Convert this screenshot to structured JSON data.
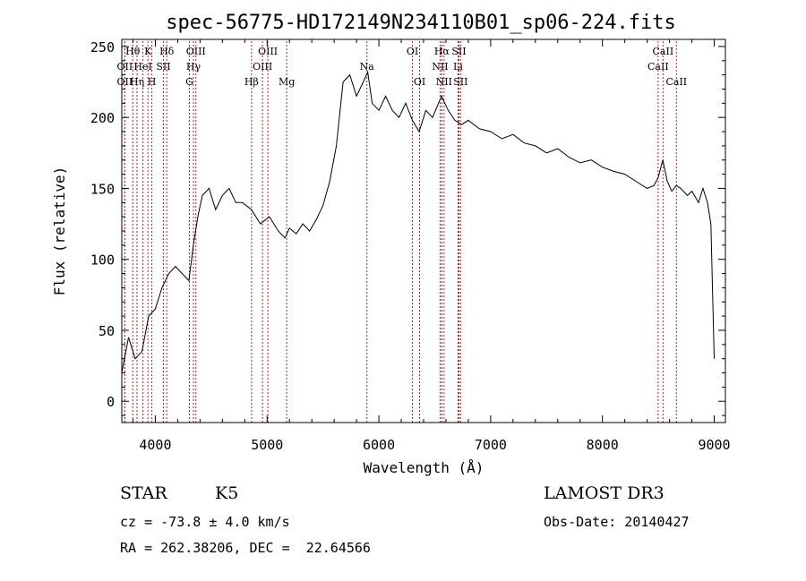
{
  "chart_data": {
    "type": "line",
    "title": "spec-56775-HD172149N234110B01_sp06-224.fits",
    "xlabel": "Wavelength (Å)",
    "ylabel": "Flux (relative)",
    "xlim": [
      3700,
      9100
    ],
    "ylim": [
      -15,
      255
    ],
    "xticks": [
      4000,
      5000,
      6000,
      7000,
      8000,
      9000
    ],
    "yticks": [
      0,
      50,
      100,
      150,
      200,
      250
    ],
    "series": [
      {
        "name": "flux",
        "x": [
          3700,
          3760,
          3820,
          3880,
          3940,
          4000,
          4060,
          4120,
          4180,
          4240,
          4300,
          4340,
          4380,
          4420,
          4480,
          4540,
          4600,
          4660,
          4720,
          4780,
          4860,
          4940,
          5020,
          5100,
          5160,
          5200,
          5260,
          5320,
          5380,
          5440,
          5500,
          5560,
          5620,
          5680,
          5740,
          5800,
          5860,
          5900,
          5940,
          6000,
          6060,
          6120,
          6180,
          6240,
          6300,
          6360,
          6420,
          6480,
          6560,
          6620,
          6680,
          6740,
          6800,
          6900,
          7000,
          7100,
          7200,
          7300,
          7400,
          7500,
          7600,
          7700,
          7800,
          7900,
          8000,
          8100,
          8200,
          8300,
          8400,
          8460,
          8500,
          8540,
          8580,
          8620,
          8660,
          8700,
          8760,
          8800,
          8860,
          8900,
          8940,
          8970,
          9000
        ],
        "y": [
          20,
          45,
          30,
          35,
          60,
          65,
          80,
          90,
          95,
          90,
          85,
          110,
          130,
          145,
          150,
          135,
          145,
          150,
          140,
          140,
          135,
          125,
          130,
          120,
          115,
          122,
          118,
          125,
          120,
          128,
          138,
          155,
          180,
          225,
          230,
          215,
          225,
          232,
          210,
          205,
          215,
          205,
          200,
          210,
          198,
          190,
          205,
          200,
          215,
          205,
          198,
          195,
          198,
          192,
          190,
          185,
          188,
          182,
          180,
          175,
          178,
          172,
          168,
          170,
          165,
          162,
          160,
          155,
          150,
          152,
          158,
          170,
          155,
          148,
          152,
          150,
          145,
          148,
          140,
          150,
          140,
          125,
          30
        ]
      }
    ],
    "spectral_lines": [
      {
        "name": "Hθ",
        "wavelength": 3798,
        "row": 1
      },
      {
        "name": "OII",
        "wavelength": 3727,
        "row": 2
      },
      {
        "name": "OII",
        "wavelength": 3727,
        "row": 3
      },
      {
        "name": "Hη",
        "wavelength": 3836,
        "row": 3
      },
      {
        "name": "K",
        "wavelength": 3934,
        "row": 1
      },
      {
        "name": "HeI",
        "wavelength": 3889,
        "row": 2
      },
      {
        "name": "H",
        "wavelength": 3969,
        "row": 3
      },
      {
        "name": "SII",
        "wavelength": 4072,
        "row": 2
      },
      {
        "name": "Hδ",
        "wavelength": 4102,
        "row": 1
      },
      {
        "name": "OIII",
        "wavelength": 4363,
        "row": 1
      },
      {
        "name": "Hγ",
        "wavelength": 4341,
        "row": 2
      },
      {
        "name": "G",
        "wavelength": 4305,
        "row": 3
      },
      {
        "name": "Hβ",
        "wavelength": 4861,
        "row": 3
      },
      {
        "name": "OIII",
        "wavelength": 4959,
        "row": 2
      },
      {
        "name": "OIII",
        "wavelength": 5007,
        "row": 1
      },
      {
        "name": "Mg",
        "wavelength": 5175,
        "row": 3
      },
      {
        "name": "Na",
        "wavelength": 5893,
        "row": 2
      },
      {
        "name": "OI",
        "wavelength": 6300,
        "row": 1
      },
      {
        "name": "OI",
        "wavelength": 6364,
        "row": 3
      },
      {
        "name": "Hα",
        "wavelength": 6563,
        "row": 1
      },
      {
        "name": "NII",
        "wavelength": 6548,
        "row": 2
      },
      {
        "name": "NII",
        "wavelength": 6583,
        "row": 3
      },
      {
        "name": "Li",
        "wavelength": 6708,
        "row": 2
      },
      {
        "name": "SII",
        "wavelength": 6716,
        "row": 1
      },
      {
        "name": "SII",
        "wavelength": 6731,
        "row": 3
      },
      {
        "name": "CaII",
        "wavelength": 8542,
        "row": 1
      },
      {
        "name": "CaII",
        "wavelength": 8498,
        "row": 2
      },
      {
        "name": "CaII",
        "wavelength": 8662,
        "row": 3
      }
    ]
  },
  "info": {
    "class": "STAR",
    "subclass": "K5",
    "cz": "cz = -73.8 ± 4.0 km/s",
    "coords": "RA = 262.38206, DEC =  22.64566",
    "survey": "LAMOST DR3",
    "obs_date": "Obs-Date: 20140427"
  },
  "colors": {
    "line_marker": "#b22222",
    "spectrum": "#000000"
  }
}
